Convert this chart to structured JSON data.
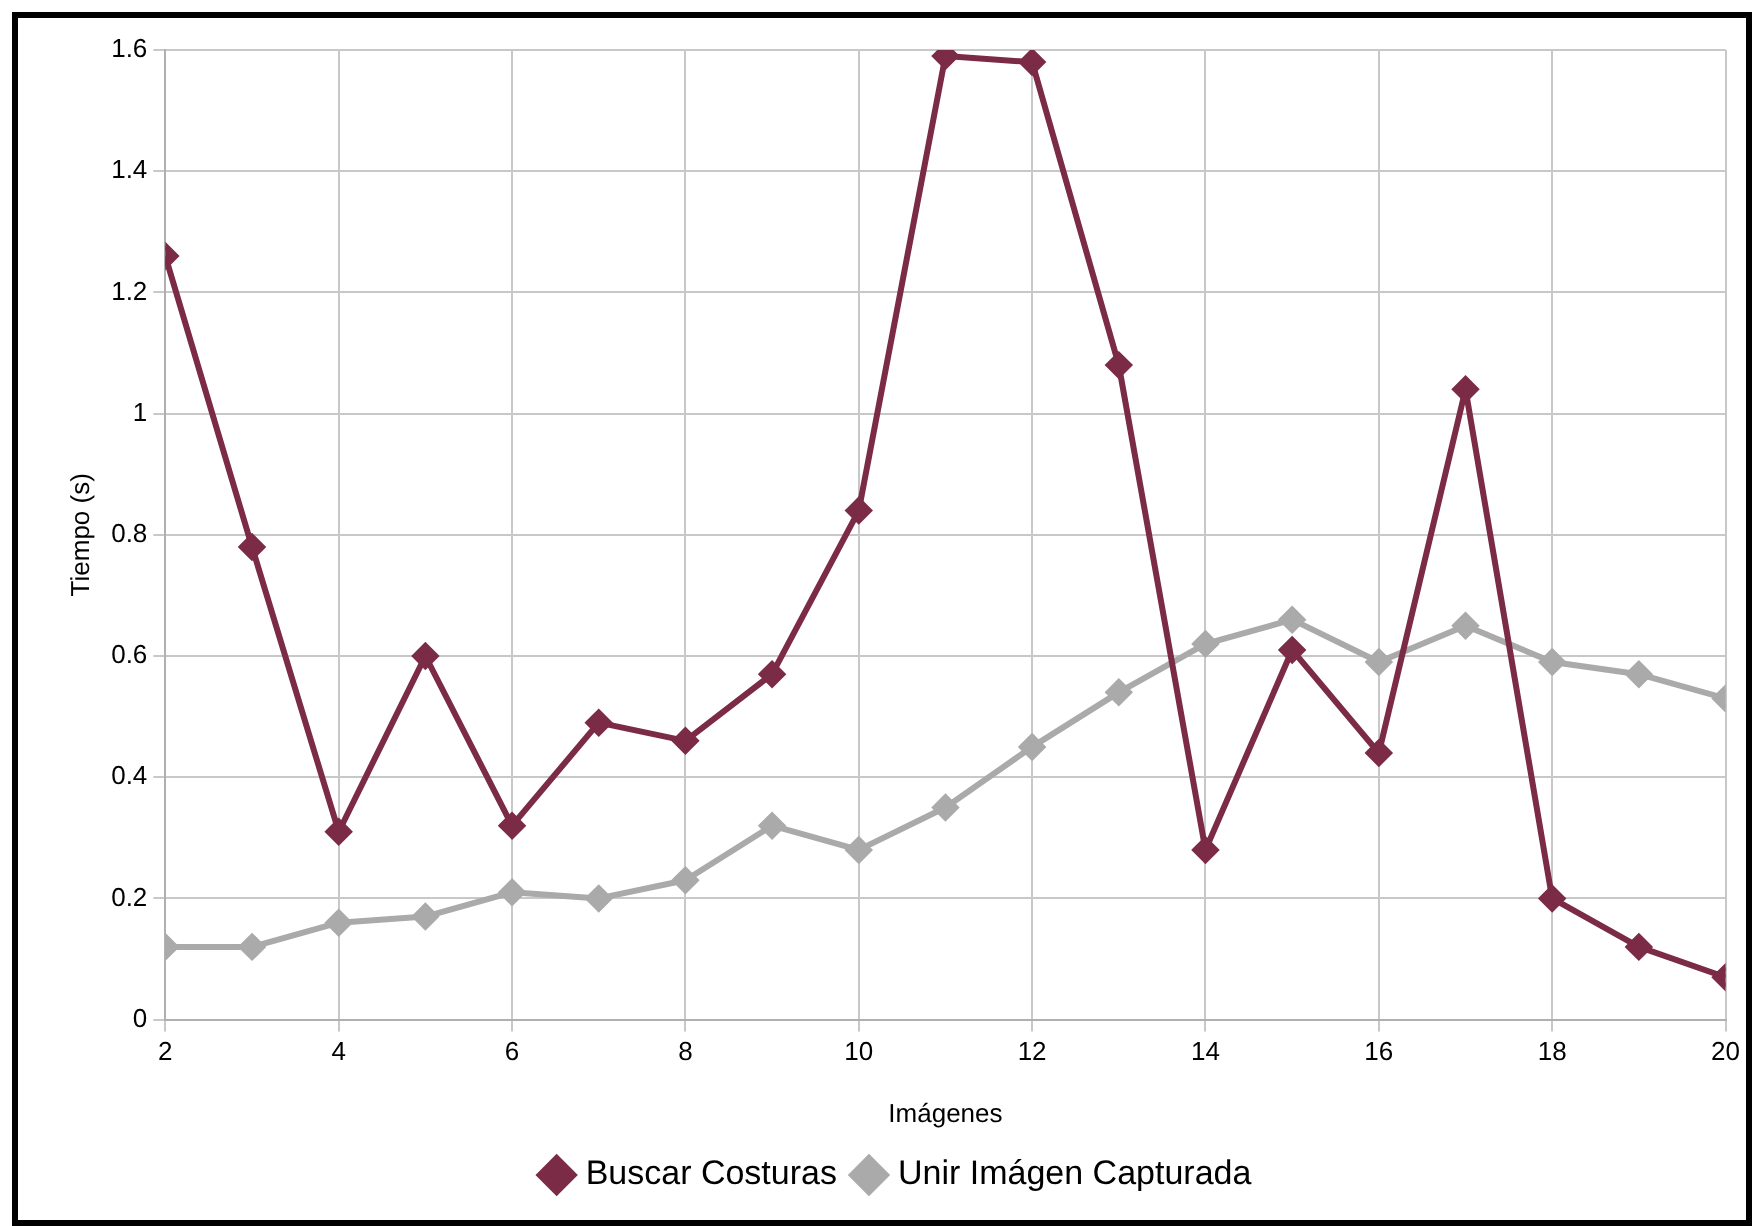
{
  "chart_data": {
    "type": "line",
    "xlabel": "Imágenes",
    "ylabel": "Tiempo (s)",
    "x": [
      2,
      3,
      4,
      5,
      6,
      7,
      8,
      9,
      10,
      11,
      12,
      13,
      14,
      15,
      16,
      17,
      18,
      19,
      20
    ],
    "xlim": [
      2,
      20
    ],
    "xticks": [
      2,
      4,
      6,
      8,
      10,
      12,
      14,
      16,
      18,
      20
    ],
    "ylim": [
      0,
      1.6
    ],
    "yticks": [
      0,
      0.2,
      0.4,
      0.6,
      0.8,
      1,
      1.2,
      1.4,
      1.6
    ],
    "grid": true,
    "legend": "bottom",
    "marker": "diamond",
    "line_style": "solid",
    "series": [
      {
        "name": "Buscar Costuras",
        "color": "#7b2b46",
        "values": [
          1.26,
          0.78,
          0.31,
          0.6,
          0.32,
          0.49,
          0.46,
          0.57,
          0.84,
          1.59,
          1.58,
          1.08,
          0.28,
          0.61,
          0.44,
          1.04,
          0.2,
          0.12,
          0.07
        ]
      },
      {
        "name": "Unir Imágen Capturada",
        "color": "#aaaaaa",
        "values": [
          0.12,
          0.12,
          0.16,
          0.17,
          0.21,
          0.2,
          0.23,
          0.32,
          0.28,
          0.35,
          0.45,
          0.54,
          0.62,
          0.66,
          0.59,
          0.65,
          0.59,
          0.57,
          0.53
        ]
      }
    ]
  }
}
